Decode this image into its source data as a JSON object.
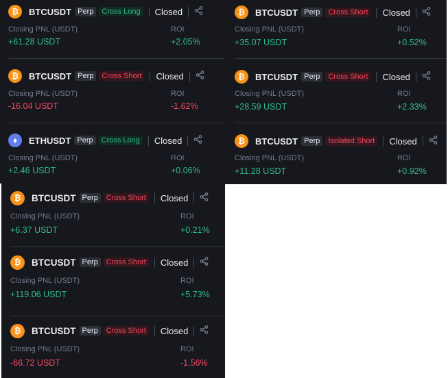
{
  "colors": {
    "positive": "#2ebd85",
    "negative": "#f6465d",
    "btc": "#f7931a",
    "eth": "#627eea",
    "background": "#17181e"
  },
  "labels": {
    "pnl": "Closing PNL (USDT)",
    "roi": "ROI",
    "perp": "Perp",
    "status": "Closed"
  },
  "panels": [
    {
      "cards": [
        {
          "coin": "btc",
          "icon": "bitcoin-icon",
          "symbol": "BTCUSDT",
          "side": "Cross Long",
          "pnl": "+61.28 USDT",
          "roi": "+2.05%"
        },
        {
          "coin": "btc",
          "icon": "bitcoin-icon",
          "symbol": "BTCUSDT",
          "side": "Cross Short",
          "pnl": "-16.04 USDT",
          "roi": "-1.62%"
        },
        {
          "coin": "eth",
          "icon": "ethereum-icon",
          "symbol": "ETHUSDT",
          "side": "Cross Long",
          "pnl": "+2.46 USDT",
          "roi": "+0.06%"
        }
      ]
    },
    {
      "cards": [
        {
          "coin": "btc",
          "icon": "bitcoin-icon",
          "symbol": "BTCUSDT",
          "side": "Cross Short",
          "pnl": "+35.07 USDT",
          "roi": "+0.52%"
        },
        {
          "coin": "btc",
          "icon": "bitcoin-icon",
          "symbol": "BTCUSDT",
          "side": "Cross Short",
          "pnl": "+28.59 USDT",
          "roi": "+2.33%"
        },
        {
          "coin": "btc",
          "icon": "bitcoin-icon",
          "symbol": "BTCUSDT",
          "side": "Isolated Short",
          "pnl": "+11.28 USDT",
          "roi": "+0.92%"
        }
      ]
    },
    {
      "cards": [
        {
          "coin": "btc",
          "icon": "bitcoin-icon",
          "symbol": "BTCUSDT",
          "side": "Cross Short",
          "pnl": "+6.37 USDT",
          "roi": "+0.21%"
        },
        {
          "coin": "btc",
          "icon": "bitcoin-icon",
          "symbol": "BTCUSDT",
          "side": "Cross Short",
          "pnl": "+119.06 USDT",
          "roi": "+5.73%"
        },
        {
          "coin": "btc",
          "icon": "bitcoin-icon",
          "symbol": "BTCUSDT",
          "side": "Cross Short",
          "pnl": "-66.72 USDT",
          "roi": "-1.56%"
        }
      ]
    }
  ]
}
